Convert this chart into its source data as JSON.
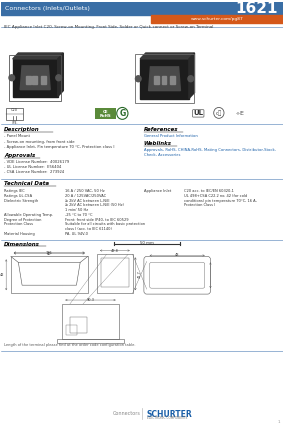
{
  "header_bg_color": "#3a6ea5",
  "header_text": "Connectors (Inlets/Outlets)",
  "header_number": "1621",
  "header_text_color": "#ffffff",
  "orange_bar_color": "#d4581a",
  "url_text": "www.schurter.com/pg87",
  "subtitle": "IEC Appliance Inlet C20, Screw-on Mounting, Front Side, Solder or Quick-connect or Screw-on Terminal",
  "subtitle_color": "#333333",
  "section_line_color": "#4a7ab5",
  "description_title": "Description",
  "description_lines": [
    "- Panel Mount",
    "- Screw-on mounting, from front side",
    "- Appliance Inlet, Pin temperature 70 °C, Protection class I"
  ],
  "approvals_title": "Approvals",
  "approvals_lines": [
    "- VDE License Number:  40026179",
    "- UL License Number:  E56404",
    "- CSA License Number:  273924"
  ],
  "references_title": "References",
  "references_lines": [
    "General Product Information"
  ],
  "weblinks_title": "Weblinks",
  "weblinks_lines": [
    "Approvals, RoHS, CHINA-RoHS, Mating Connectors, Distributor-Stock-",
    "Check, Accessories"
  ],
  "tech_title": "Technical Data",
  "tech_left": [
    [
      "Ratings IEC",
      "16 A / 250 VAC, 50 Hz"
    ],
    [
      "Ratings UL-CSA",
      "20 A / 125VAC/250VAC"
    ],
    [
      "Dielectric Strength",
      "≥ 2kV AC between L-N/E"
    ],
    [
      "",
      "≥ 2kV AC between L-N/E (50 Hz)"
    ],
    [
      "",
      "1 min/ 50 Hz"
    ],
    [
      "Allowable Operating Temp.",
      "-25 °C to 70 °C"
    ],
    [
      "Degree of Protection",
      "Front: front side IP40, to IEC 60529"
    ],
    [
      "Protection Class",
      "Suitable for all circuits with basic protection"
    ],
    [
      "",
      "class I (acc. to IEC 61140)"
    ],
    [
      "Material Housing",
      "PA, UL 94V-0"
    ]
  ],
  "tech_right": [
    [
      "Appliance Inlet",
      "C20 acc. to IEC/EN 60320-1"
    ],
    [
      "",
      "UL 498+CSA C22.2 no. 42 (for cold"
    ],
    [
      "",
      "conditions) pin temperature 70°C, 16 A,"
    ],
    [
      "",
      "Protection Class I"
    ]
  ],
  "dimensions_title": "Dimensions",
  "terminal_note": "Length of the terminal please find at the order code configuration table.",
  "footer_connectors": "Connectors",
  "footer_schurter": "SCHURTER",
  "footer_sub": "ELECTRONIC COMPONENTS",
  "bg_color": "#ffffff",
  "blue_text_color": "#1a5fa8",
  "conn_dark": "#1c1c1c",
  "conn_mid": "#3a3a3a",
  "conn_light": "#888888",
  "dim_line_color": "#555555"
}
